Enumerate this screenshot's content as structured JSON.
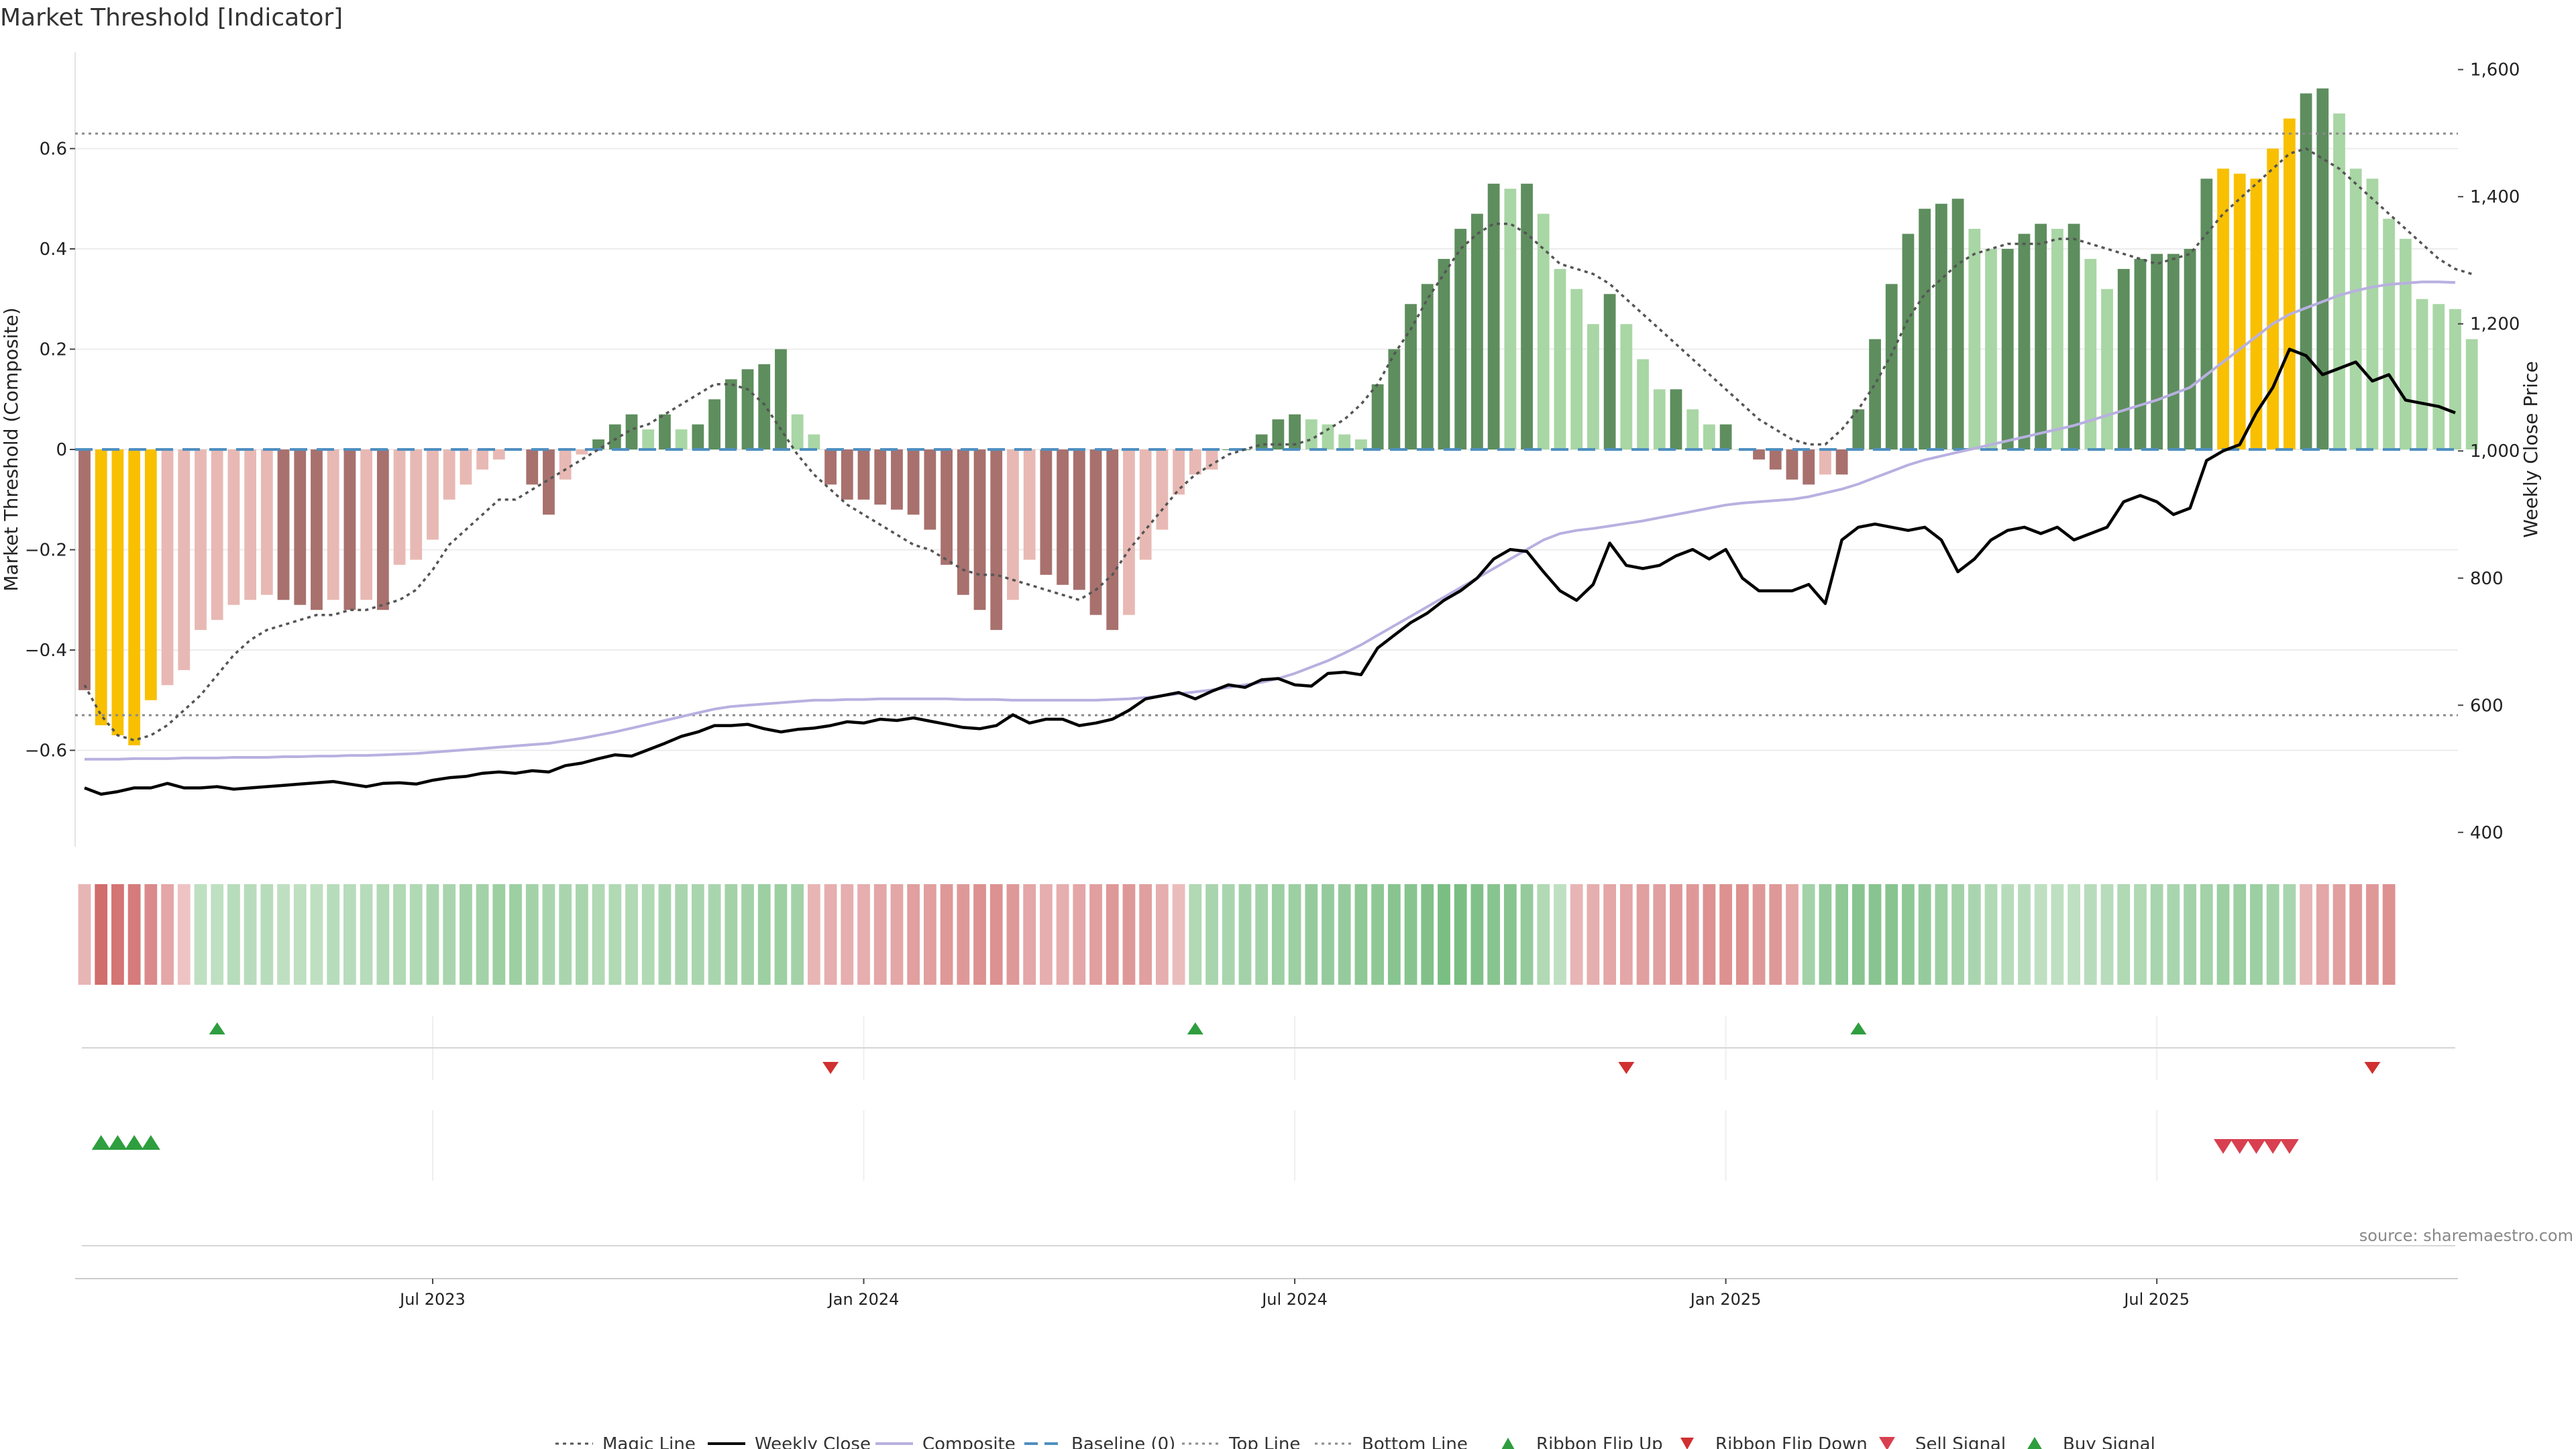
{
  "title": "Market Threshold [Indicator]",
  "source": "source: sharemaestro.com",
  "colors": {
    "bar_light_red": "#e8b9b4",
    "bar_dark_red": "#a8716e",
    "bar_light_green": "#a9d6a5",
    "bar_dark_green": "#5e8e5e",
    "bar_extreme": "#f8c000",
    "weekly_close": "#000000",
    "magic_line": "#555555",
    "composite": "#b8b0e0",
    "baseline": "#4f8fc0",
    "ribbon_flip_up": "#2e9e3e",
    "ribbon_flip_down": "#d03030",
    "sell_signal": "#d84050",
    "buy_signal": "#2e9e3e"
  },
  "chart_data": {
    "type": "bar",
    "x_axis": {
      "tick_labels": [
        "Jul 2023",
        "Jan 2024",
        "Jul 2024",
        "Jan 2025",
        "Jul 2025"
      ],
      "tick_weeks": [
        21,
        47,
        73,
        99,
        125
      ]
    },
    "y_left": {
      "label": "Market Threshold (Composite)",
      "ticks": [
        -0.6,
        -0.4,
        -0.2,
        0,
        0.2,
        0.4,
        0.6
      ],
      "tick_labels": [
        "−0.6",
        "−0.4",
        "−0.2",
        "0",
        "0.2",
        "0.4",
        "0.6"
      ],
      "range": [
        -0.8,
        0.8
      ]
    },
    "y_right": {
      "label": "Weekly Close Price",
      "ticks": [
        400,
        600,
        800,
        1000,
        1200,
        1400,
        1600
      ],
      "tick_labels": [
        "400",
        "600",
        "800",
        "1,000",
        "1,200",
        "1,400",
        "1,600"
      ],
      "range": [
        385,
        1625
      ]
    },
    "top_line": 0.63,
    "bottom_line": -0.53,
    "weeks": 144,
    "series": [
      {
        "name": "Market Threshold",
        "values": [
          -0.48,
          -0.55,
          -0.57,
          -0.59,
          -0.5,
          -0.47,
          -0.44,
          -0.36,
          -0.34,
          -0.31,
          -0.3,
          -0.29,
          -0.3,
          -0.31,
          -0.32,
          -0.3,
          -0.32,
          -0.3,
          -0.32,
          -0.23,
          -0.22,
          -0.18,
          -0.1,
          -0.07,
          -0.04,
          -0.02,
          0,
          -0.07,
          -0.13,
          -0.06,
          -0.01,
          0.02,
          0.05,
          0.07,
          0.04,
          0.07,
          0.04,
          0.05,
          0.1,
          0.14,
          0.16,
          0.17,
          0.2,
          0.07,
          0.03,
          -0.07,
          -0.1,
          -0.1,
          -0.11,
          -0.12,
          -0.13,
          -0.16,
          -0.23,
          -0.29,
          -0.32,
          -0.36,
          -0.3,
          -0.22,
          -0.25,
          -0.27,
          -0.28,
          -0.33,
          -0.36,
          -0.33,
          -0.22,
          -0.16,
          -0.09,
          -0.05,
          -0.04,
          0,
          0,
          0.03,
          0.06,
          0.07,
          0.06,
          0.05,
          0.03,
          0.02,
          0.13,
          0.2,
          0.29,
          0.33,
          0.38,
          0.44,
          0.47,
          0.53,
          0.52,
          0.53,
          0.47,
          0.36,
          0.32,
          0.25,
          0.31,
          0.25,
          0.18,
          0.12,
          0.12,
          0.08,
          0.05,
          0.05,
          0,
          -0.02,
          -0.04,
          -0.06,
          -0.07,
          -0.05,
          -0.05,
          0.08,
          0.22,
          0.33,
          0.43,
          0.48,
          0.49,
          0.5,
          0.44,
          0.4,
          0.4,
          0.43,
          0.45,
          0.44,
          0.45,
          0.38,
          0.32,
          0.36,
          0.38,
          0.39,
          0.39,
          0.4,
          0.54,
          0.56,
          0.55,
          0.54,
          0.6,
          0.66,
          0.71,
          0.72,
          0.67,
          0.56,
          0.54,
          0.46,
          0.42,
          0.3,
          0.29,
          0.28,
          0.22
        ]
      },
      {
        "name": "Magic Line",
        "values": [
          -0.47,
          -0.53,
          -0.57,
          -0.58,
          -0.57,
          -0.55,
          -0.52,
          -0.49,
          -0.45,
          -0.41,
          -0.38,
          -0.36,
          -0.35,
          -0.34,
          -0.33,
          -0.33,
          -0.32,
          -0.32,
          -0.31,
          -0.3,
          -0.28,
          -0.24,
          -0.19,
          -0.16,
          -0.13,
          -0.1,
          -0.1,
          -0.08,
          -0.06,
          -0.04,
          -0.02,
          0.0,
          0.02,
          0.04,
          0.05,
          0.07,
          0.09,
          0.11,
          0.13,
          0.13,
          0.12,
          0.09,
          0.04,
          -0.01,
          -0.05,
          -0.08,
          -0.11,
          -0.13,
          -0.15,
          -0.17,
          -0.19,
          -0.2,
          -0.22,
          -0.24,
          -0.25,
          -0.25,
          -0.26,
          -0.27,
          -0.28,
          -0.29,
          -0.3,
          -0.28,
          -0.25,
          -0.2,
          -0.16,
          -0.12,
          -0.08,
          -0.05,
          -0.03,
          -0.01,
          0.0,
          0.01,
          0.01,
          0.01,
          0.02,
          0.04,
          0.06,
          0.09,
          0.13,
          0.19,
          0.24,
          0.3,
          0.35,
          0.4,
          0.43,
          0.45,
          0.45,
          0.43,
          0.4,
          0.37,
          0.36,
          0.35,
          0.33,
          0.3,
          0.27,
          0.24,
          0.21,
          0.18,
          0.15,
          0.12,
          0.09,
          0.06,
          0.04,
          0.02,
          0.01,
          0.01,
          0.04,
          0.08,
          0.13,
          0.19,
          0.26,
          0.31,
          0.34,
          0.37,
          0.39,
          0.4,
          0.41,
          0.41,
          0.41,
          0.42,
          0.42,
          0.41,
          0.4,
          0.39,
          0.38,
          0.37,
          0.38,
          0.39,
          0.43,
          0.47,
          0.5,
          0.53,
          0.56,
          0.59,
          0.6,
          0.58,
          0.56,
          0.53,
          0.5,
          0.47,
          0.44,
          0.41,
          0.38,
          0.36,
          0.35
        ]
      },
      {
        "name": "Weekly Close",
        "values": [
          470,
          460,
          464,
          470,
          470,
          477,
          470,
          470,
          472,
          468,
          470,
          472,
          474,
          476,
          478,
          480,
          476,
          472,
          477,
          478,
          476,
          482,
          486,
          488,
          493,
          495,
          493,
          497,
          495,
          505,
          509,
          516,
          522,
          520,
          530,
          540,
          551,
          558,
          568,
          568,
          570,
          563,
          558,
          562,
          564,
          568,
          574,
          572,
          578,
          576,
          580,
          575,
          570,
          565,
          563,
          568,
          585,
          572,
          578,
          578,
          568,
          572,
          578,
          592,
          610,
          615,
          620,
          610,
          622,
          632,
          628,
          640,
          642,
          632,
          630,
          650,
          652,
          648,
          690,
          710,
          730,
          745,
          765,
          780,
          800,
          830,
          845,
          842,
          810,
          780,
          765,
          790,
          855,
          820,
          815,
          820,
          835,
          845,
          830,
          845,
          800,
          780,
          780,
          780,
          790,
          760,
          860,
          880,
          885,
          880,
          875,
          880,
          860,
          810,
          830,
          860,
          875,
          880,
          870,
          880,
          860,
          870,
          880,
          920,
          930,
          920,
          900,
          910,
          985,
          1000,
          1010,
          1060,
          1100,
          1160,
          1150,
          1120,
          1130,
          1140,
          1110,
          1120,
          1080,
          1075,
          1070,
          1060
        ]
      },
      {
        "name": "Composite",
        "values": [
          515,
          515,
          515,
          516,
          516,
          516,
          517,
          517,
          517,
          518,
          518,
          518,
          519,
          519,
          520,
          520,
          521,
          521,
          522,
          523,
          524,
          526,
          528,
          530,
          532,
          534,
          536,
          538,
          540,
          544,
          548,
          553,
          558,
          564,
          570,
          576,
          582,
          588,
          594,
          598,
          600,
          602,
          604,
          606,
          608,
          608,
          609,
          609,
          610,
          610,
          610,
          610,
          610,
          609,
          609,
          609,
          608,
          608,
          608,
          608,
          608,
          608,
          609,
          610,
          612,
          615,
          618,
          621,
          624,
          628,
          632,
          636,
          642,
          650,
          660,
          670,
          682,
          695,
          710,
          725,
          740,
          755,
          770,
          785,
          800,
          815,
          830,
          845,
          860,
          870,
          875,
          878,
          882,
          886,
          890,
          895,
          900,
          905,
          910,
          915,
          918,
          920,
          922,
          924,
          928,
          934,
          940,
          948,
          958,
          968,
          978,
          986,
          992,
          998,
          1004,
          1010,
          1016,
          1022,
          1028,
          1034,
          1040,
          1048,
          1056,
          1064,
          1072,
          1080,
          1090,
          1100,
          1120,
          1140,
          1160,
          1180,
          1200,
          1215,
          1225,
          1235,
          1245,
          1252,
          1258,
          1262,
          1264,
          1266,
          1266,
          1265
        ]
      }
    ],
    "ribbon": [
      -0.3,
      -0.8,
      -0.75,
      -0.7,
      -0.6,
      -0.4,
      -0.2,
      0.3,
      0.3,
      0.35,
      0.35,
      0.35,
      0.3,
      0.3,
      0.3,
      0.35,
      0.35,
      0.35,
      0.4,
      0.4,
      0.4,
      0.45,
      0.45,
      0.5,
      0.5,
      0.55,
      0.55,
      0.5,
      0.45,
      0.45,
      0.45,
      0.4,
      0.4,
      0.4,
      0.4,
      0.45,
      0.45,
      0.45,
      0.45,
      0.5,
      0.5,
      0.55,
      0.55,
      0.5,
      -0.3,
      -0.35,
      -0.35,
      -0.35,
      -0.4,
      -0.4,
      -0.45,
      -0.45,
      -0.5,
      -0.5,
      -0.55,
      -0.55,
      -0.5,
      -0.4,
      -0.35,
      -0.35,
      -0.4,
      -0.45,
      -0.5,
      -0.5,
      -0.45,
      -0.35,
      -0.25,
      0.4,
      0.45,
      0.45,
      0.5,
      0.5,
      0.55,
      0.55,
      0.6,
      0.6,
      0.6,
      0.65,
      0.65,
      0.7,
      0.7,
      0.75,
      0.8,
      0.8,
      0.75,
      0.7,
      0.7,
      0.6,
      0.4,
      0.3,
      -0.3,
      -0.35,
      -0.4,
      -0.4,
      -0.45,
      -0.45,
      -0.5,
      -0.5,
      -0.55,
      -0.55,
      -0.55,
      -0.5,
      -0.5,
      -0.4,
      0.5,
      0.6,
      0.65,
      0.7,
      0.7,
      0.7,
      0.65,
      0.6,
      0.55,
      0.5,
      0.45,
      0.4,
      0.35,
      0.35,
      0.3,
      0.3,
      0.3,
      0.35,
      0.35,
      0.4,
      0.4,
      0.45,
      0.45,
      0.5,
      0.5,
      0.55,
      0.55,
      0.55,
      0.5,
      0.45,
      -0.3,
      -0.4,
      -0.45,
      -0.5,
      -0.5,
      -0.55
    ],
    "ribbon_flip_up_weeks": [
      8,
      67,
      107
    ],
    "ribbon_flip_down_weeks": [
      45,
      93,
      138
    ],
    "buy_signal_weeks": [
      1,
      2,
      3,
      4
    ],
    "sell_signal_weeks": [
      129,
      130,
      131,
      132,
      133
    ],
    "extreme_weeks": [
      1,
      2,
      3,
      4,
      129,
      130,
      131,
      132,
      133
    ],
    "legend": {
      "placement": "bottom-center",
      "items": [
        "Magic Line",
        "Weekly Close",
        "Composite",
        "Baseline (0)",
        "Top Line",
        "Bottom Line",
        "Ribbon Flip Up",
        "Ribbon Flip Down",
        "Sell Signal",
        "Buy Signal"
      ]
    }
  }
}
